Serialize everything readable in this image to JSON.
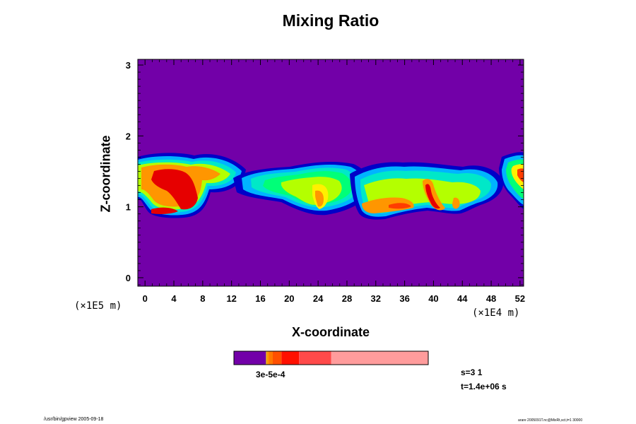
{
  "chart_data": {
    "type": "heatmap",
    "title": "Mixing Ratio",
    "xlabel": "X-coordinate",
    "ylabel": "Z-coordinate",
    "x_unit": "(×1E4 m)",
    "y_unit": "(×1E5 m)",
    "xlim": [
      -1,
      52.5
    ],
    "ylim": [
      -0.12,
      3.08
    ],
    "x_ticks": [
      "0",
      "4",
      "8",
      "12",
      "16",
      "20",
      "24",
      "28",
      "32",
      "36",
      "40",
      "44",
      "48",
      "52"
    ],
    "y_ticks": [
      "0",
      "1",
      "2",
      "3"
    ],
    "background_color": "#7200A8",
    "levels": [
      {
        "color": "#0000C8"
      },
      {
        "color": "#00B4FF"
      },
      {
        "color": "#00E8C8"
      },
      {
        "color": "#00FF78"
      },
      {
        "color": "#B4FF00"
      },
      {
        "color": "#FFF000"
      },
      {
        "color": "#FF9600"
      },
      {
        "color": "#FF3C00"
      },
      {
        "color": "#E60000"
      }
    ],
    "colorbar": {
      "label": "3e-5e-4",
      "segments": [
        {
          "color": "#7200A8",
          "width": 0.165
        },
        {
          "color": "#DDB000",
          "width": 0.005
        },
        {
          "color": "#FF9600",
          "width": 0.01
        },
        {
          "color": "#FF7800",
          "width": 0.02
        },
        {
          "color": "#FF5000",
          "width": 0.045
        },
        {
          "color": "#FF1000",
          "width": 0.09
        },
        {
          "color": "#FF4A4A",
          "width": 0.165
        },
        {
          "color": "#FF9C9C",
          "width": 0.5
        }
      ]
    }
  },
  "info": {
    "step": "s=3 1",
    "time": "t=1.4e+06 s"
  },
  "footer": {
    "left": "/usr/bin/gpview 2005-09-18",
    "right": "arare 2005091T.nc@MixRt,sct,t=1 30000"
  }
}
